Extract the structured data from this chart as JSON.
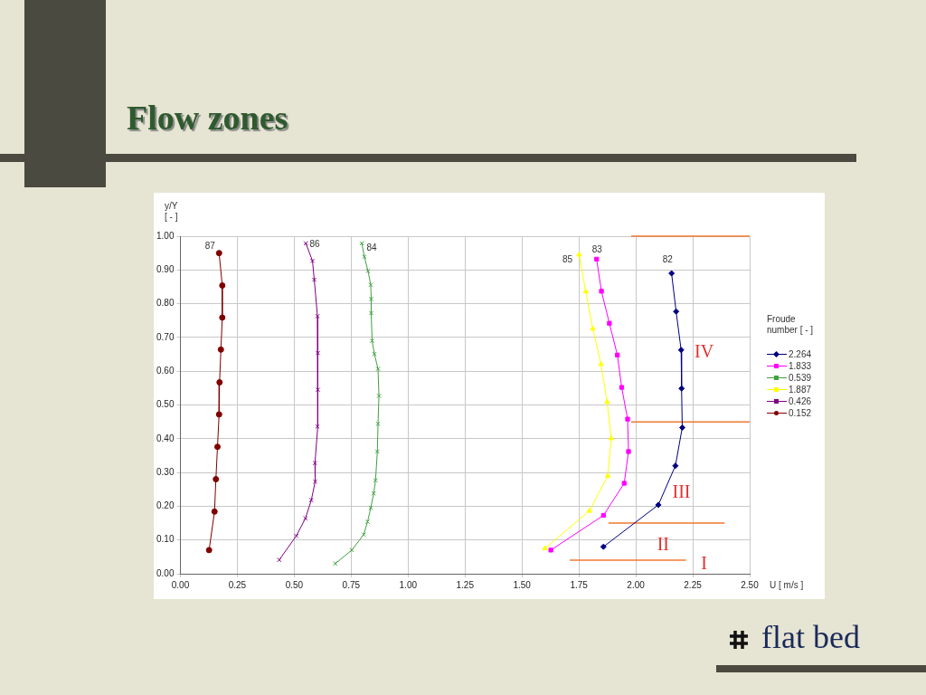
{
  "chart_data": {
    "type": "line",
    "title": "Flow zones",
    "xlabel": "U [ m/s ]",
    "ylabel": "y/Y [ - ]",
    "legend_title": "Froude number [ - ]",
    "legend": "right",
    "grid": true,
    "line_style": "solid",
    "xlim": [
      0,
      2.5
    ],
    "ylim": [
      0,
      1
    ],
    "xticks": [
      {
        "value": 0,
        "label": "0.00"
      },
      {
        "value": 0.25,
        "label": "0.25"
      },
      {
        "value": 0.5,
        "label": "0.50"
      },
      {
        "value": 0.75,
        "label": "0.75"
      },
      {
        "value": 1,
        "label": "1.00"
      },
      {
        "value": 1.25,
        "label": "1.25"
      },
      {
        "value": 1.5,
        "label": "1.50"
      },
      {
        "value": 1.75,
        "label": "1.75"
      },
      {
        "value": 2,
        "label": "2.00"
      },
      {
        "value": 2.25,
        "label": "2.25"
      },
      {
        "value": 2.5,
        "label": "2.50"
      }
    ],
    "yticks": [
      {
        "value": 0,
        "label": "0.00"
      },
      {
        "value": 0.1,
        "label": "0.10"
      },
      {
        "value": 0.2,
        "label": "0.20"
      },
      {
        "value": 0.3,
        "label": "0.30"
      },
      {
        "value": 0.4,
        "label": "0.40"
      },
      {
        "value": 0.5,
        "label": "0.50"
      },
      {
        "value": 0.6,
        "label": "0.60"
      },
      {
        "value": 0.7,
        "label": "0.70"
      },
      {
        "value": 0.8,
        "label": "0.80"
      },
      {
        "value": 0.9,
        "label": "0.90"
      },
      {
        "value": 1,
        "label": "1.00"
      }
    ],
    "series": [
      {
        "name": "2.264",
        "color": "#000080",
        "marker": "diamond",
        "x": [
          2.157,
          2.177,
          2.199,
          2.201,
          2.204,
          2.174,
          2.099,
          1.858
        ],
        "values": [
          0.89,
          0.777,
          0.663,
          0.549,
          0.433,
          0.32,
          0.204,
          0.08
        ]
      },
      {
        "name": "1.833",
        "color": "#ff00ff",
        "marker": "square",
        "x": [
          1.828,
          1.849,
          1.884,
          1.919,
          1.938,
          1.964,
          1.968,
          1.949,
          1.858,
          1.627
        ],
        "values": [
          0.932,
          0.837,
          0.742,
          0.648,
          0.552,
          0.458,
          0.362,
          0.268,
          0.173,
          0.07
        ]
      },
      {
        "name": "0.539",
        "color": "#40a040",
        "marker": "cross",
        "x": [
          0.797,
          0.808,
          0.824,
          0.836,
          0.838,
          0.838,
          0.842,
          0.852,
          0.868,
          0.872,
          0.868,
          0.865,
          0.857,
          0.849,
          0.836,
          0.822,
          0.805,
          0.753,
          0.68
        ],
        "values": [
          0.979,
          0.939,
          0.897,
          0.856,
          0.814,
          0.772,
          0.69,
          0.651,
          0.607,
          0.527,
          0.444,
          0.362,
          0.277,
          0.238,
          0.195,
          0.154,
          0.116,
          0.07,
          0.03
        ]
      },
      {
        "name": "1.887",
        "color": "#ffff00",
        "marker": "triangle",
        "x": [
          1.751,
          1.78,
          1.811,
          1.847,
          1.874,
          1.892,
          1.877,
          1.796,
          1.601
        ],
        "values": [
          0.945,
          0.836,
          0.726,
          0.621,
          0.509,
          0.401,
          0.29,
          0.186,
          0.075
        ]
      },
      {
        "name": "0.426",
        "color": "#800080",
        "marker": "cross",
        "x": [
          0.551,
          0.58,
          0.588,
          0.602,
          0.604,
          0.604,
          0.602,
          0.591,
          0.592,
          0.575,
          0.549,
          0.509,
          0.434
        ],
        "values": [
          0.979,
          0.927,
          0.871,
          0.763,
          0.654,
          0.545,
          0.436,
          0.328,
          0.273,
          0.218,
          0.164,
          0.112,
          0.041
        ]
      },
      {
        "name": "0.152",
        "color": "#800000",
        "marker": "circle",
        "x": [
          0.17,
          0.184,
          0.184,
          0.178,
          0.172,
          0.17,
          0.163,
          0.156,
          0.15,
          0.126
        ],
        "values": [
          0.95,
          0.854,
          0.759,
          0.664,
          0.567,
          0.472,
          0.376,
          0.28,
          0.184,
          0.07
        ]
      },
      {
        "type": "line",
        "color": "#f07830",
        "marker": "none",
        "x": [
          1.98,
          2.5
        ],
        "values": [
          1,
          1
        ]
      },
      {
        "type": "line",
        "color": "#f07830",
        "marker": "none",
        "x": [
          1.98,
          2.5
        ],
        "values": [
          0.45,
          0.45
        ]
      },
      {
        "type": "line",
        "color": "#f07830",
        "marker": "none",
        "x": [
          1.88,
          2.39
        ],
        "values": [
          0.15,
          0.15
        ]
      },
      {
        "type": "line",
        "color": "#f07830",
        "marker": "none",
        "x": [
          1.71,
          2.22
        ],
        "values": [
          0.04,
          0.04
        ]
      }
    ],
    "annotations": [
      "87",
      "86",
      "84",
      "85",
      "83",
      "82",
      "IV",
      "III",
      "II",
      "I",
      "flat bed"
    ]
  }
}
